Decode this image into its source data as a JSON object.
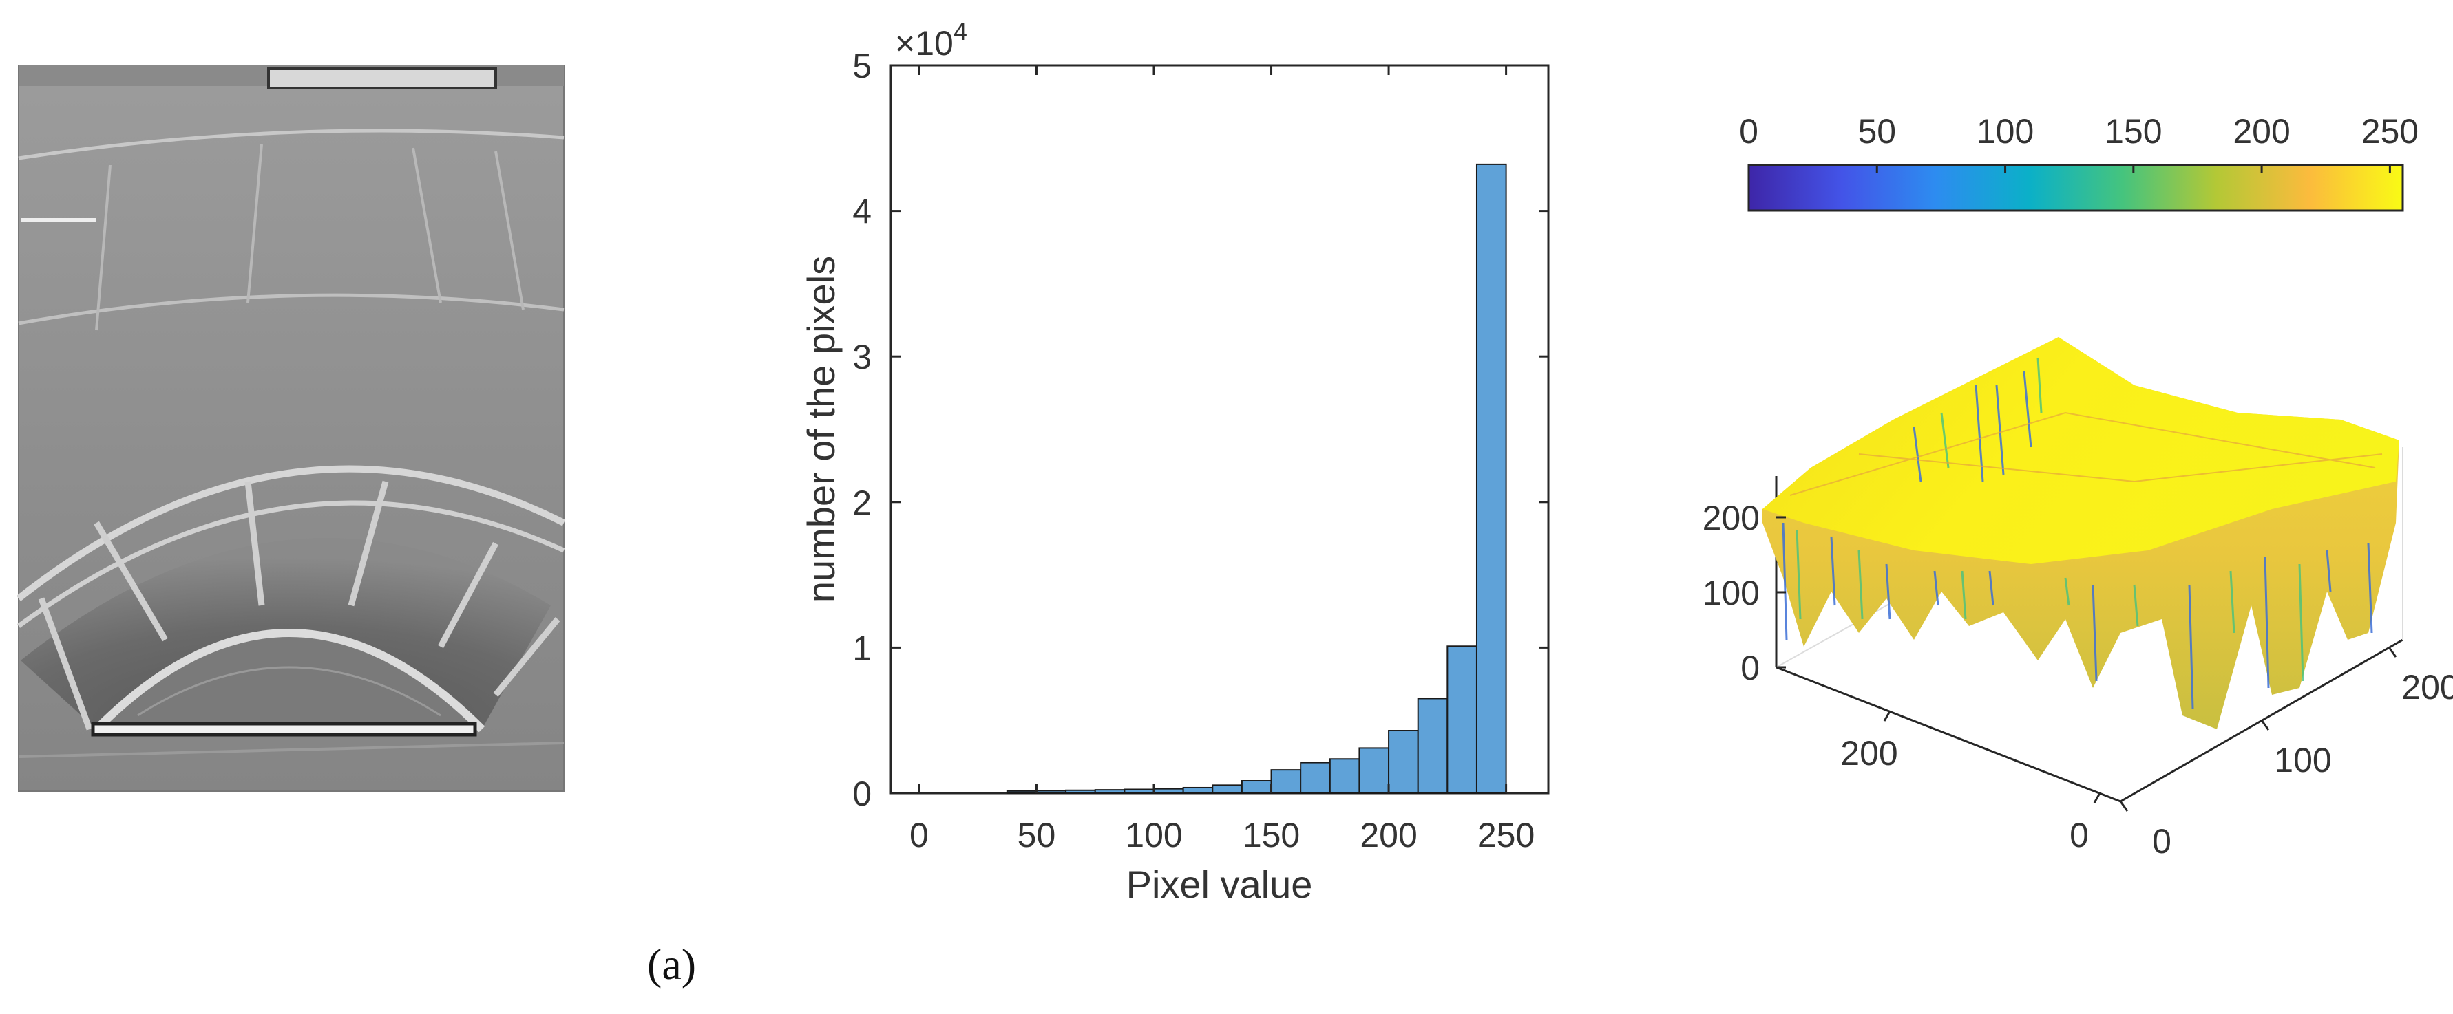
{
  "figure": {
    "panel_label": "(a)"
  },
  "photo": {
    "description_icon": "grayscale-image"
  },
  "chart_data": [
    {
      "type": "bar",
      "title": "",
      "xlabel": "Pixel value",
      "ylabel": "number of the pixels",
      "exponent_label": "×10",
      "exponent_power": "4",
      "xlim": [
        -12,
        268
      ],
      "ylim": [
        0,
        50000
      ],
      "xticks": [
        0,
        50,
        100,
        150,
        200,
        250
      ],
      "yticks": [
        0,
        1,
        2,
        3,
        4,
        5
      ],
      "bin_width": 12.5,
      "bins": [
        {
          "start": 37.5,
          "value": 150
        },
        {
          "start": 50,
          "value": 170
        },
        {
          "start": 62.5,
          "value": 200
        },
        {
          "start": 75,
          "value": 230
        },
        {
          "start": 87.5,
          "value": 260
        },
        {
          "start": 100,
          "value": 300
        },
        {
          "start": 112.5,
          "value": 380
        },
        {
          "start": 125,
          "value": 550
        },
        {
          "start": 137.5,
          "value": 850
        },
        {
          "start": 150,
          "value": 1600
        },
        {
          "start": 162.5,
          "value": 2100
        },
        {
          "start": 175,
          "value": 2350
        },
        {
          "start": 187.5,
          "value": 3100
        },
        {
          "start": 200,
          "value": 4300
        },
        {
          "start": 212.5,
          "value": 6500
        },
        {
          "start": 225,
          "value": 10100
        },
        {
          "start": 237.5,
          "value": 43200
        }
      ],
      "bar_color": "#5fa2d8",
      "bar_edge": "#1a1a1a"
    },
    {
      "type": "surface",
      "zlim": [
        0,
        255
      ],
      "zticks": [
        0,
        100,
        200
      ],
      "xticks": [
        0,
        100,
        200
      ],
      "yticks": [
        0,
        200
      ],
      "colorbar": {
        "ticks": [
          0,
          50,
          100,
          150,
          200,
          250
        ],
        "range": [
          0,
          255
        ],
        "colormap": "parula",
        "stops": [
          "#3e26a8",
          "#4354e8",
          "#2d8cf0",
          "#0bb0c8",
          "#45c47e",
          "#b3c836",
          "#fbbb3d",
          "#f9fb15"
        ]
      }
    }
  ]
}
